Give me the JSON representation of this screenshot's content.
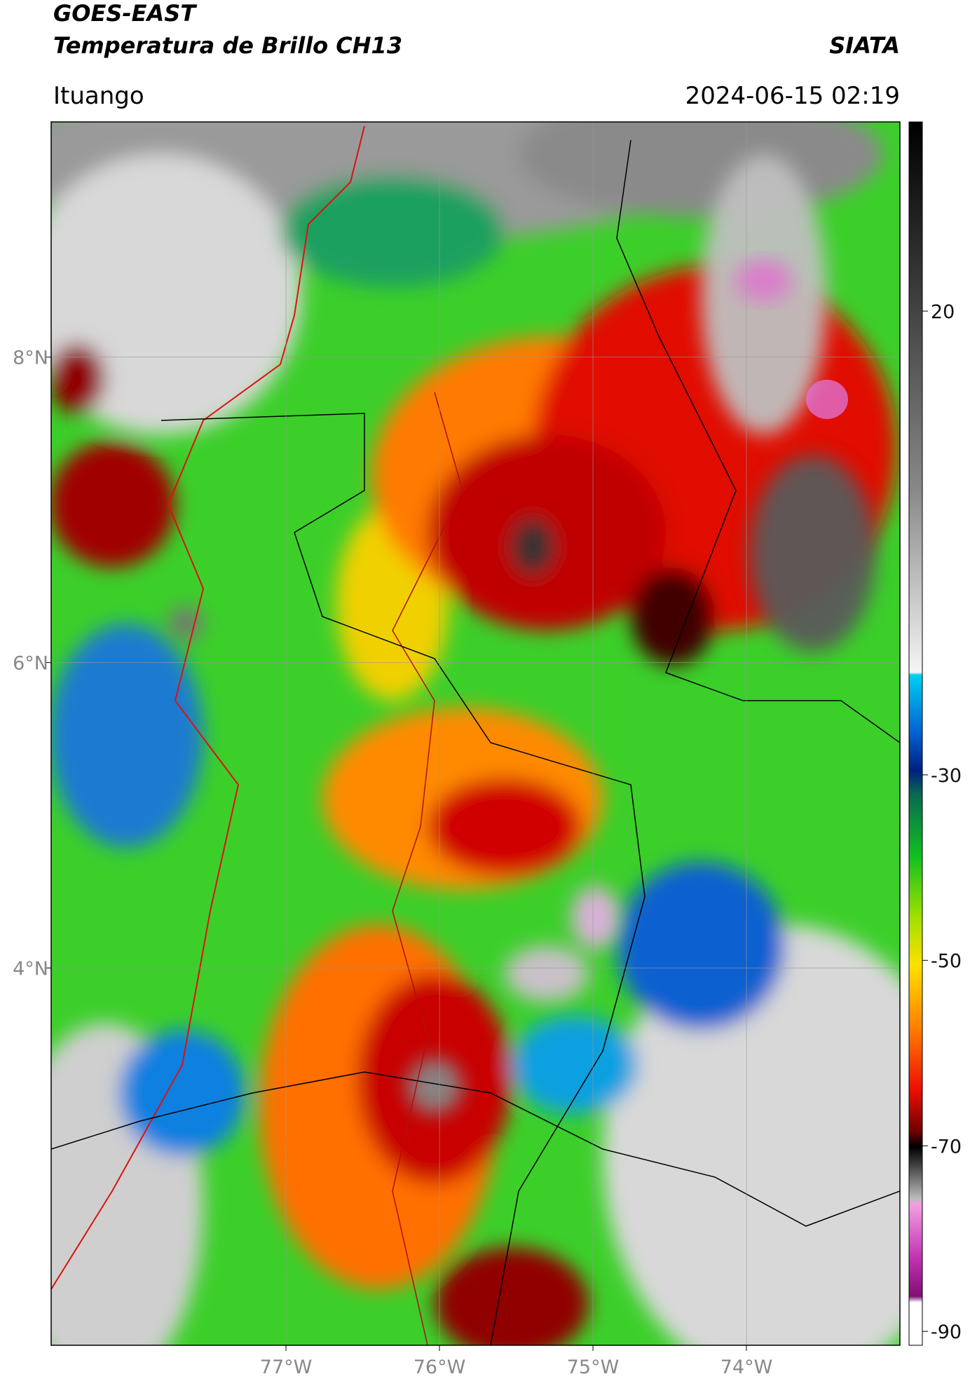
{
  "header": {
    "title": "GOES-EAST",
    "subtitle": "Temperatura de Brillo CH13",
    "source": "SIATA",
    "location": "Ituango",
    "datetime": "2024-06-15 02:19"
  },
  "map": {
    "xlim": [
      -78.53,
      -73.0
    ],
    "ylim": [
      1.53,
      9.54
    ],
    "xticks": [
      {
        "value": -77,
        "label": "77°W"
      },
      {
        "value": -76,
        "label": "76°W"
      },
      {
        "value": -75,
        "label": "75°W"
      },
      {
        "value": -74,
        "label": "74°W"
      }
    ],
    "yticks": [
      {
        "value": 8,
        "label": "8°N"
      },
      {
        "value": 6,
        "label": "6°N"
      },
      {
        "value": 4,
        "label": "4°N"
      }
    ],
    "grid": true
  },
  "colorbar": {
    "lim": [
      -91.5,
      40.4
    ],
    "ticks": [
      20,
      -30,
      -50,
      -70,
      -90
    ]
  }
}
